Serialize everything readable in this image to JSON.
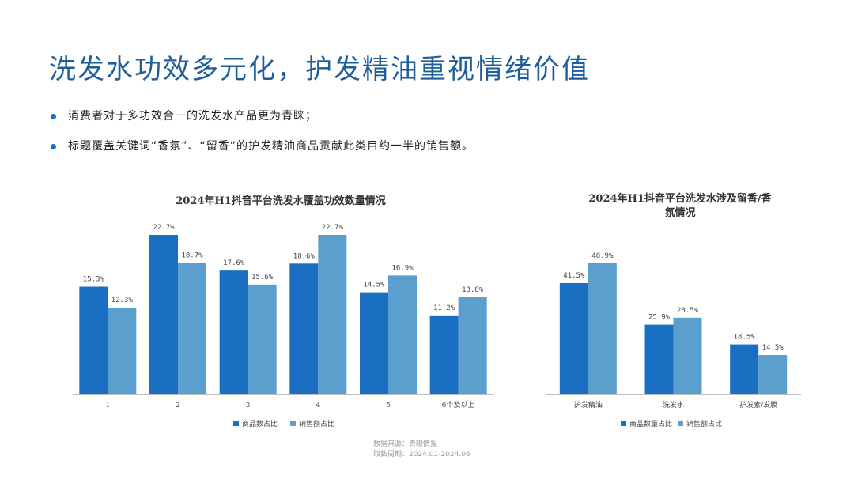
{
  "page": {
    "title": "洗发水功效多元化，护发精油重视情绪价值",
    "bullets": [
      "消费者对于多功效合一的洗发水产品更为青睐；",
      "标题覆盖关键词“香氛”、“留香”的护发精油商品贡献此类目约一半的销售额。"
    ]
  },
  "source": {
    "line1": "数据来源：青眼情报",
    "line2": "取数周期：2024.01-2024.06"
  },
  "colors": {
    "series1": "#1a6fc2",
    "series2": "#5b9fcf",
    "title": "#1f5d99",
    "bullet": "#1f6fbf"
  },
  "chart_data": [
    {
      "type": "bar",
      "title": "2024年H1抖音平台洗发水覆盖功效数量情况",
      "categories": [
        "1",
        "2",
        "3",
        "4",
        "5",
        "6个及以上"
      ],
      "series": [
        {
          "name": "商品数占比",
          "values": [
            15.3,
            22.7,
            17.6,
            18.6,
            14.5,
            11.2
          ],
          "labels": [
            "15.3%",
            "22.7%",
            "17.6%",
            "18.6%",
            "14.5%",
            "11.2%"
          ]
        },
        {
          "name": "销售额占比",
          "values": [
            12.3,
            18.7,
            15.6,
            22.7,
            16.9,
            13.8
          ],
          "labels": [
            "12.3%",
            "18.7%",
            "15.6%",
            "22.7%",
            "16.9%",
            "13.8%"
          ]
        }
      ],
      "ylim": [
        0,
        22.7
      ],
      "legend_position": "bottom",
      "grid": false
    },
    {
      "type": "bar",
      "title": "2024年H1抖音平台洗发水涉及留香/香氛情况",
      "title_lines": [
        "2024年H1抖音平台洗发水涉及留香/香",
        "氛情况"
      ],
      "categories": [
        "护发精油",
        "洗发水",
        "护发素/发膜"
      ],
      "series": [
        {
          "name": "商品数量占比",
          "values": [
            41.5,
            25.9,
            18.5
          ],
          "labels": [
            "41.5%",
            "25.9%",
            "18.5%"
          ]
        },
        {
          "name": "销售额占比",
          "values": [
            48.9,
            28.5,
            14.5
          ],
          "labels": [
            "48.9%",
            "28.5%",
            "14.5%"
          ]
        }
      ],
      "ylim": [
        0,
        48.9
      ],
      "legend_position": "bottom",
      "grid": false
    }
  ]
}
